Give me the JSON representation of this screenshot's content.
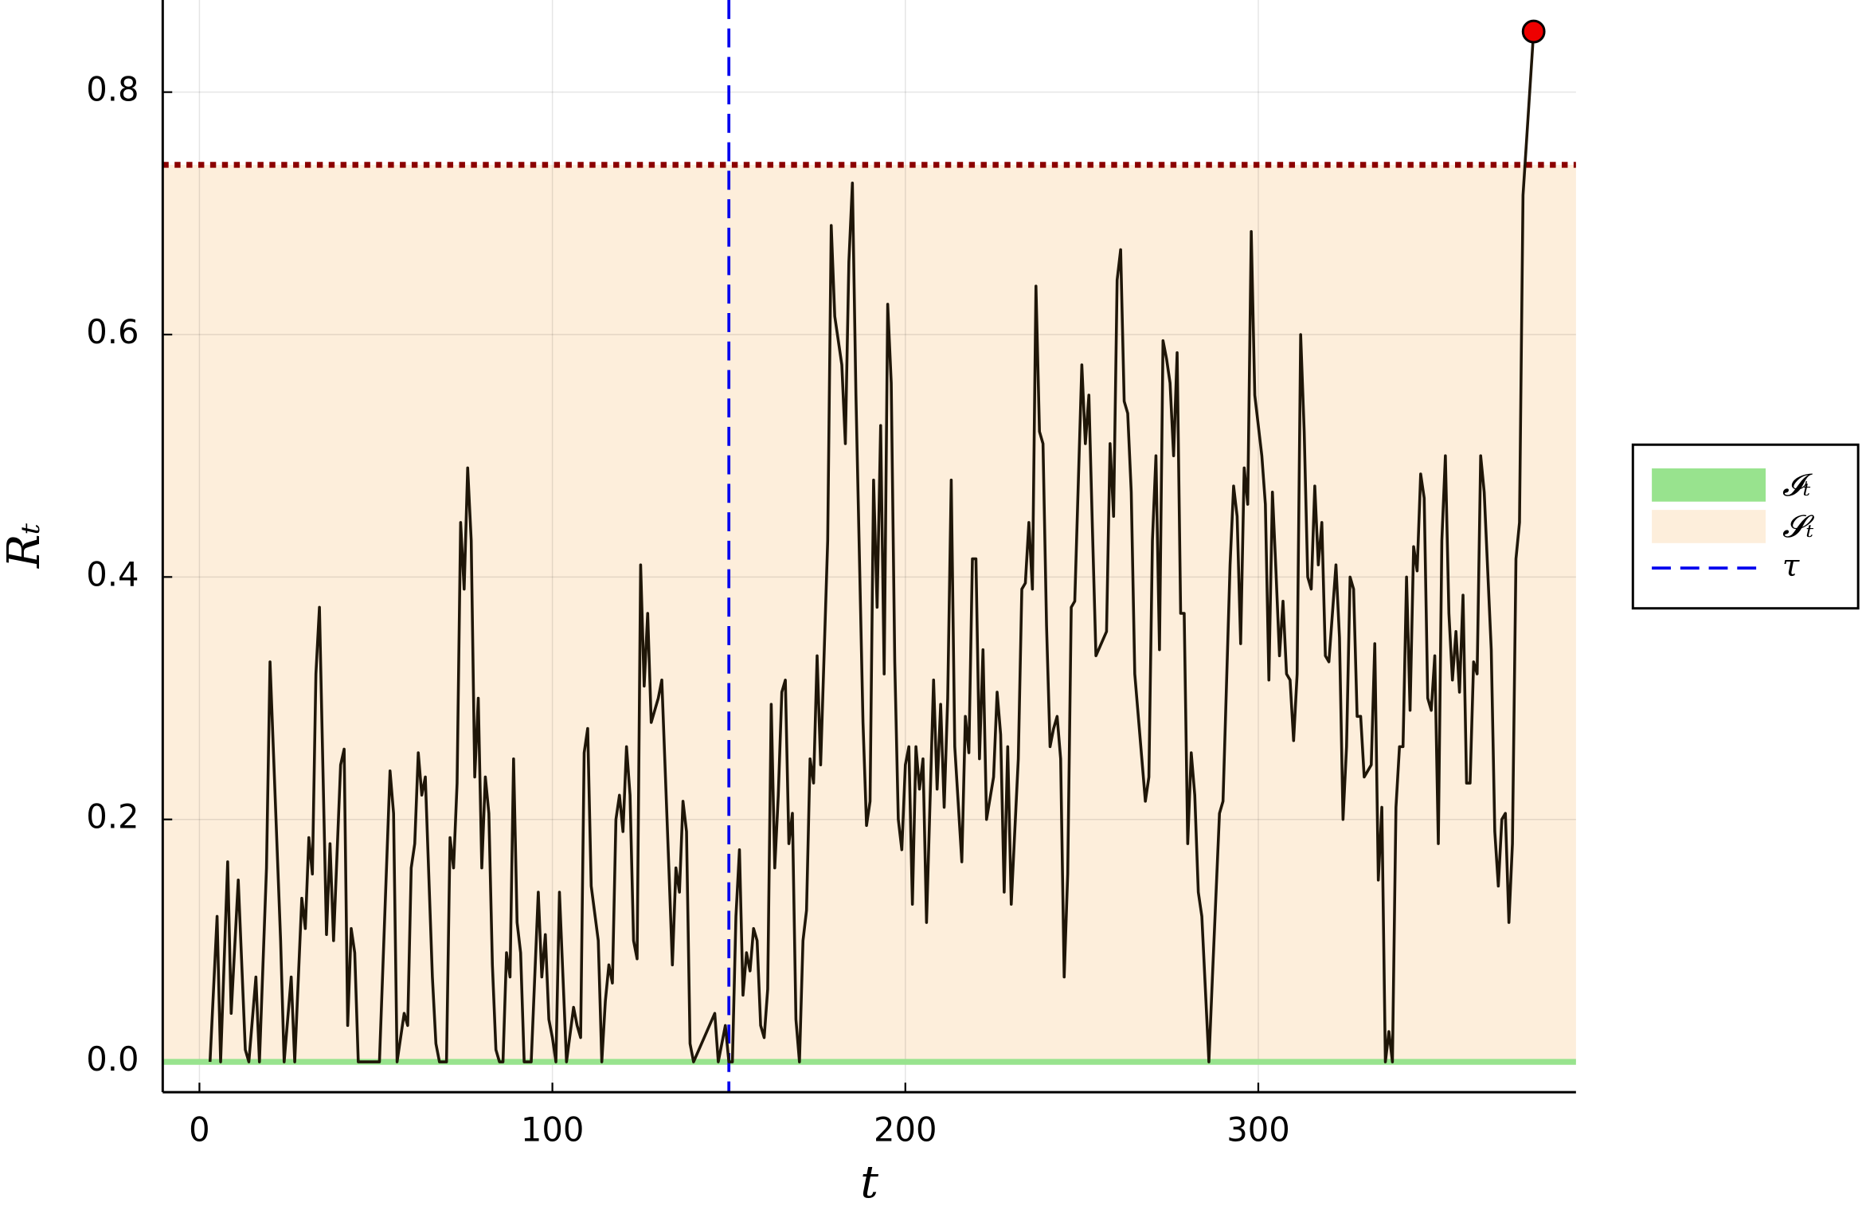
{
  "chart_data": {
    "type": "line",
    "xlabel": "t",
    "ylabel": "Rₜ",
    "xlim": [
      -10.4,
      390
    ],
    "ylim": [
      -0.025,
      0.876
    ],
    "xticks": [
      0,
      100,
      200,
      300
    ],
    "yticks": [
      {
        "value": 0,
        "label": "0.0"
      },
      0.2,
      0.4,
      0.6,
      0.8
    ],
    "grid": true,
    "legend": "right",
    "color": "#1f1608",
    "regions": [
      {
        "name": "𝓘ₜ",
        "color": "#98e38e",
        "range": [
          0,
          0
        ]
      },
      {
        "name": "𝓢ₜ",
        "color": "#fdeedb",
        "range": [
          0,
          0.74
        ]
      }
    ],
    "threshold": {
      "value": 0.74,
      "color": "#8b0000"
    },
    "vline": {
      "name": "τ",
      "x": 150,
      "color": "#0000ee"
    },
    "marker": {
      "x": 378,
      "y": 0.85,
      "color": "#ee0000"
    },
    "x": [
      3,
      5,
      6,
      8,
      9,
      11,
      13,
      14,
      16,
      17,
      19,
      20,
      23,
      24,
      26,
      27,
      29,
      30,
      31,
      32,
      33,
      34,
      36,
      37,
      38,
      40,
      41,
      42,
      43,
      44,
      45,
      51,
      54,
      55,
      56,
      58,
      59,
      60,
      61,
      62,
      63,
      64,
      66,
      67,
      68,
      70,
      71,
      72,
      73,
      74,
      75,
      76,
      77,
      78,
      79,
      80,
      81,
      82,
      83,
      84,
      85,
      86,
      87,
      88,
      89,
      90,
      91,
      92,
      94,
      96,
      97,
      98,
      99,
      100,
      101,
      102,
      103,
      104,
      106,
      107,
      108,
      109,
      110,
      111,
      113,
      114,
      115,
      116,
      117,
      118,
      119,
      120,
      121,
      122,
      123,
      124,
      125,
      126,
      127,
      128,
      130,
      131,
      133,
      134,
      135,
      136,
      137,
      138,
      139,
      140,
      146,
      147,
      149,
      150,
      151,
      152,
      153,
      154,
      155,
      156,
      157,
      158,
      159,
      160,
      161,
      162,
      163,
      164,
      165,
      166,
      167,
      168,
      169,
      170,
      171,
      172,
      173,
      174,
      175,
      176,
      178,
      179,
      180,
      182,
      183,
      184,
      185,
      186,
      188,
      189,
      190,
      191,
      192,
      193,
      194,
      195,
      196,
      197,
      198,
      199,
      200,
      201,
      202,
      203,
      204,
      205,
      206,
      208,
      209,
      210,
      211,
      212,
      213,
      214,
      216,
      217,
      218,
      219,
      220,
      221,
      222,
      223,
      225,
      226,
      227,
      228,
      229,
      230,
      232,
      233,
      234,
      235,
      236,
      237,
      238,
      239,
      240,
      241,
      242,
      243,
      244,
      245,
      246,
      247,
      248,
      250,
      251,
      252,
      253,
      254,
      257,
      258,
      259,
      260,
      261,
      262,
      263,
      264,
      265,
      267,
      268,
      269,
      270,
      271,
      272,
      273,
      274,
      275,
      276,
      277,
      278,
      279,
      280,
      281,
      282,
      283,
      284,
      286,
      287,
      289,
      290,
      292,
      293,
      294,
      295,
      296,
      297,
      298,
      299,
      301,
      302,
      303,
      304,
      305,
      306,
      307,
      308,
      309,
      310,
      311,
      312,
      313,
      314,
      315,
      316,
      317,
      318,
      319,
      320,
      322,
      323,
      324,
      325,
      326,
      327,
      328,
      329,
      330,
      331,
      332,
      333,
      334,
      335,
      336,
      337,
      338,
      339,
      340,
      341,
      342,
      343,
      344,
      345,
      346,
      347,
      348,
      349,
      350,
      351,
      352,
      353,
      354,
      355,
      356,
      357,
      358,
      359,
      360,
      361,
      362,
      363,
      364,
      366,
      367,
      368,
      369,
      370,
      371,
      372,
      373,
      374,
      375,
      378
    ],
    "values": [
      0,
      0.12,
      0,
      0.165,
      0.04,
      0.15,
      0.01,
      0,
      0.07,
      0,
      0.16,
      0.33,
      0.1,
      0,
      0.07,
      0,
      0.135,
      0.11,
      0.185,
      0.155,
      0.32,
      0.375,
      0.105,
      0.18,
      0.1,
      0.245,
      0.258,
      0.03,
      0.11,
      0.09,
      0,
      0,
      0.24,
      0.205,
      0,
      0.04,
      0.03,
      0.16,
      0.18,
      0.255,
      0.22,
      0.235,
      0.07,
      0.015,
      0,
      0,
      0.185,
      0.16,
      0.23,
      0.445,
      0.39,
      0.49,
      0.43,
      0.235,
      0.3,
      0.16,
      0.235,
      0.205,
      0.08,
      0.01,
      0,
      0,
      0.09,
      0.07,
      0.25,
      0.115,
      0.09,
      0,
      0,
      0.14,
      0.07,
      0.105,
      0.035,
      0.02,
      0,
      0.14,
      0.07,
      0,
      0.045,
      0.03,
      0.02,
      0.255,
      0.275,
      0.145,
      0.1,
      0,
      0.05,
      0.08,
      0.065,
      0.2,
      0.22,
      0.19,
      0.26,
      0.22,
      0.1,
      0.085,
      0.41,
      0.31,
      0.37,
      0.28,
      0.3,
      0.315,
      0.16,
      0.08,
      0.16,
      0.14,
      0.215,
      0.19,
      0.015,
      0,
      0.04,
      0,
      0.03,
      0,
      0,
      0.12,
      0.175,
      0.055,
      0.09,
      0.075,
      0.11,
      0.1,
      0.03,
      0.02,
      0.06,
      0.295,
      0.16,
      0.22,
      0.305,
      0.315,
      0.18,
      0.205,
      0.035,
      0,
      0.1,
      0.125,
      0.25,
      0.23,
      0.335,
      0.245,
      0.43,
      0.69,
      0.615,
      0.575,
      0.51,
      0.66,
      0.725,
      0.55,
      0.28,
      0.195,
      0.215,
      0.48,
      0.375,
      0.525,
      0.32,
      0.625,
      0.56,
      0.33,
      0.2,
      0.175,
      0.245,
      0.26,
      0.13,
      0.26,
      0.225,
      0.25,
      0.115,
      0.315,
      0.225,
      0.295,
      0.21,
      0.3,
      0.48,
      0.26,
      0.165,
      0.285,
      0.255,
      0.415,
      0.415,
      0.25,
      0.34,
      0.2,
      0.235,
      0.305,
      0.27,
      0.14,
      0.26,
      0.13,
      0.25,
      0.39,
      0.395,
      0.445,
      0.39,
      0.64,
      0.52,
      0.51,
      0.36,
      0.26,
      0.275,
      0.285,
      0.25,
      0.07,
      0.155,
      0.375,
      0.38,
      0.575,
      0.51,
      0.55,
      0.44,
      0.335,
      0.355,
      0.51,
      0.45,
      0.645,
      0.67,
      0.545,
      0.535,
      0.47,
      0.32,
      0.25,
      0.215,
      0.235,
      0.43,
      0.5,
      0.34,
      0.595,
      0.58,
      0.56,
      0.5,
      0.585,
      0.37,
      0.37,
      0.18,
      0.255,
      0.22,
      0.14,
      0.12,
      0,
      0.07,
      0.205,
      0.215,
      0.41,
      0.475,
      0.45,
      0.345,
      0.49,
      0.46,
      0.685,
      0.55,
      0.5,
      0.46,
      0.315,
      0.47,
      0.405,
      0.335,
      0.38,
      0.32,
      0.315,
      0.265,
      0.32,
      0.6,
      0.52,
      0.4,
      0.39,
      0.475,
      0.41,
      0.445,
      0.335,
      0.33,
      0.41,
      0.35,
      0.2,
      0.26,
      0.4,
      0.39,
      0.285,
      0.285,
      0.235,
      0.24,
      0.245,
      0.345,
      0.15,
      0.21,
      0,
      0.025,
      0,
      0.21,
      0.26,
      0.26,
      0.4,
      0.29,
      0.425,
      0.405,
      0.485,
      0.465,
      0.3,
      0.29,
      0.335,
      0.18,
      0.43,
      0.5,
      0.37,
      0.315,
      0.355,
      0.305,
      0.385,
      0.23,
      0.23,
      0.33,
      0.32,
      0.5,
      0.47,
      0.34,
      0.19,
      0.145,
      0.2,
      0.205,
      0.115,
      0.18,
      0.415,
      0.445,
      0.715,
      0.85
    ]
  }
}
